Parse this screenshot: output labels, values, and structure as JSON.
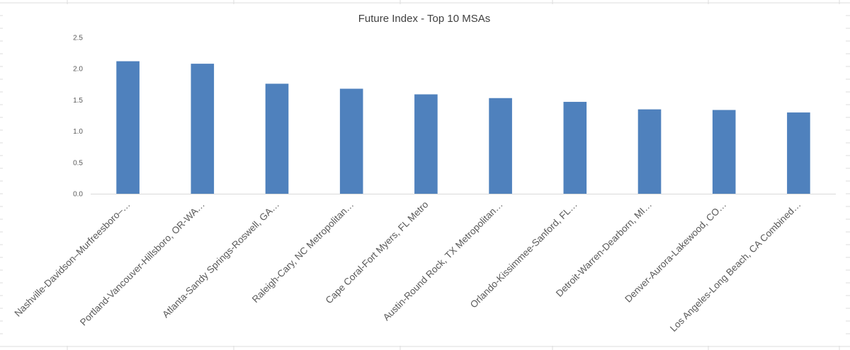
{
  "chart_data": {
    "type": "bar",
    "title": "Future Index - Top 10 MSAs",
    "xlabel": "",
    "ylabel": "",
    "categories": [
      "Nashville-Davidson–Murfreesboro–…",
      "Portland-Vancouver-Hillsboro, OR-WA…",
      "Atlanta-Sandy Springs-Roswell, GA…",
      "Raleigh-Cary, NC Metropolitan…",
      "Cape Coral-Fort Myers, FL Metro",
      "Austin-Round Rock, TX Metropolitan…",
      "Orlando-Kissimmee-Sanford, FL…",
      "Detroit-Warren-Dearborn, MI…",
      "Denver-Aurora-Lakewood, CO…",
      "Los Angeles-Long Beach, CA Combined…"
    ],
    "values": [
      2.12,
      2.08,
      1.76,
      1.68,
      1.59,
      1.53,
      1.47,
      1.35,
      1.34,
      1.3
    ],
    "ylim": [
      0,
      2.5
    ],
    "yticks": [
      "0.0",
      "0.5",
      "1.0",
      "1.5",
      "2.0",
      "2.5"
    ],
    "grid": false,
    "legend": "none",
    "bar_color": "#4F81BD"
  }
}
